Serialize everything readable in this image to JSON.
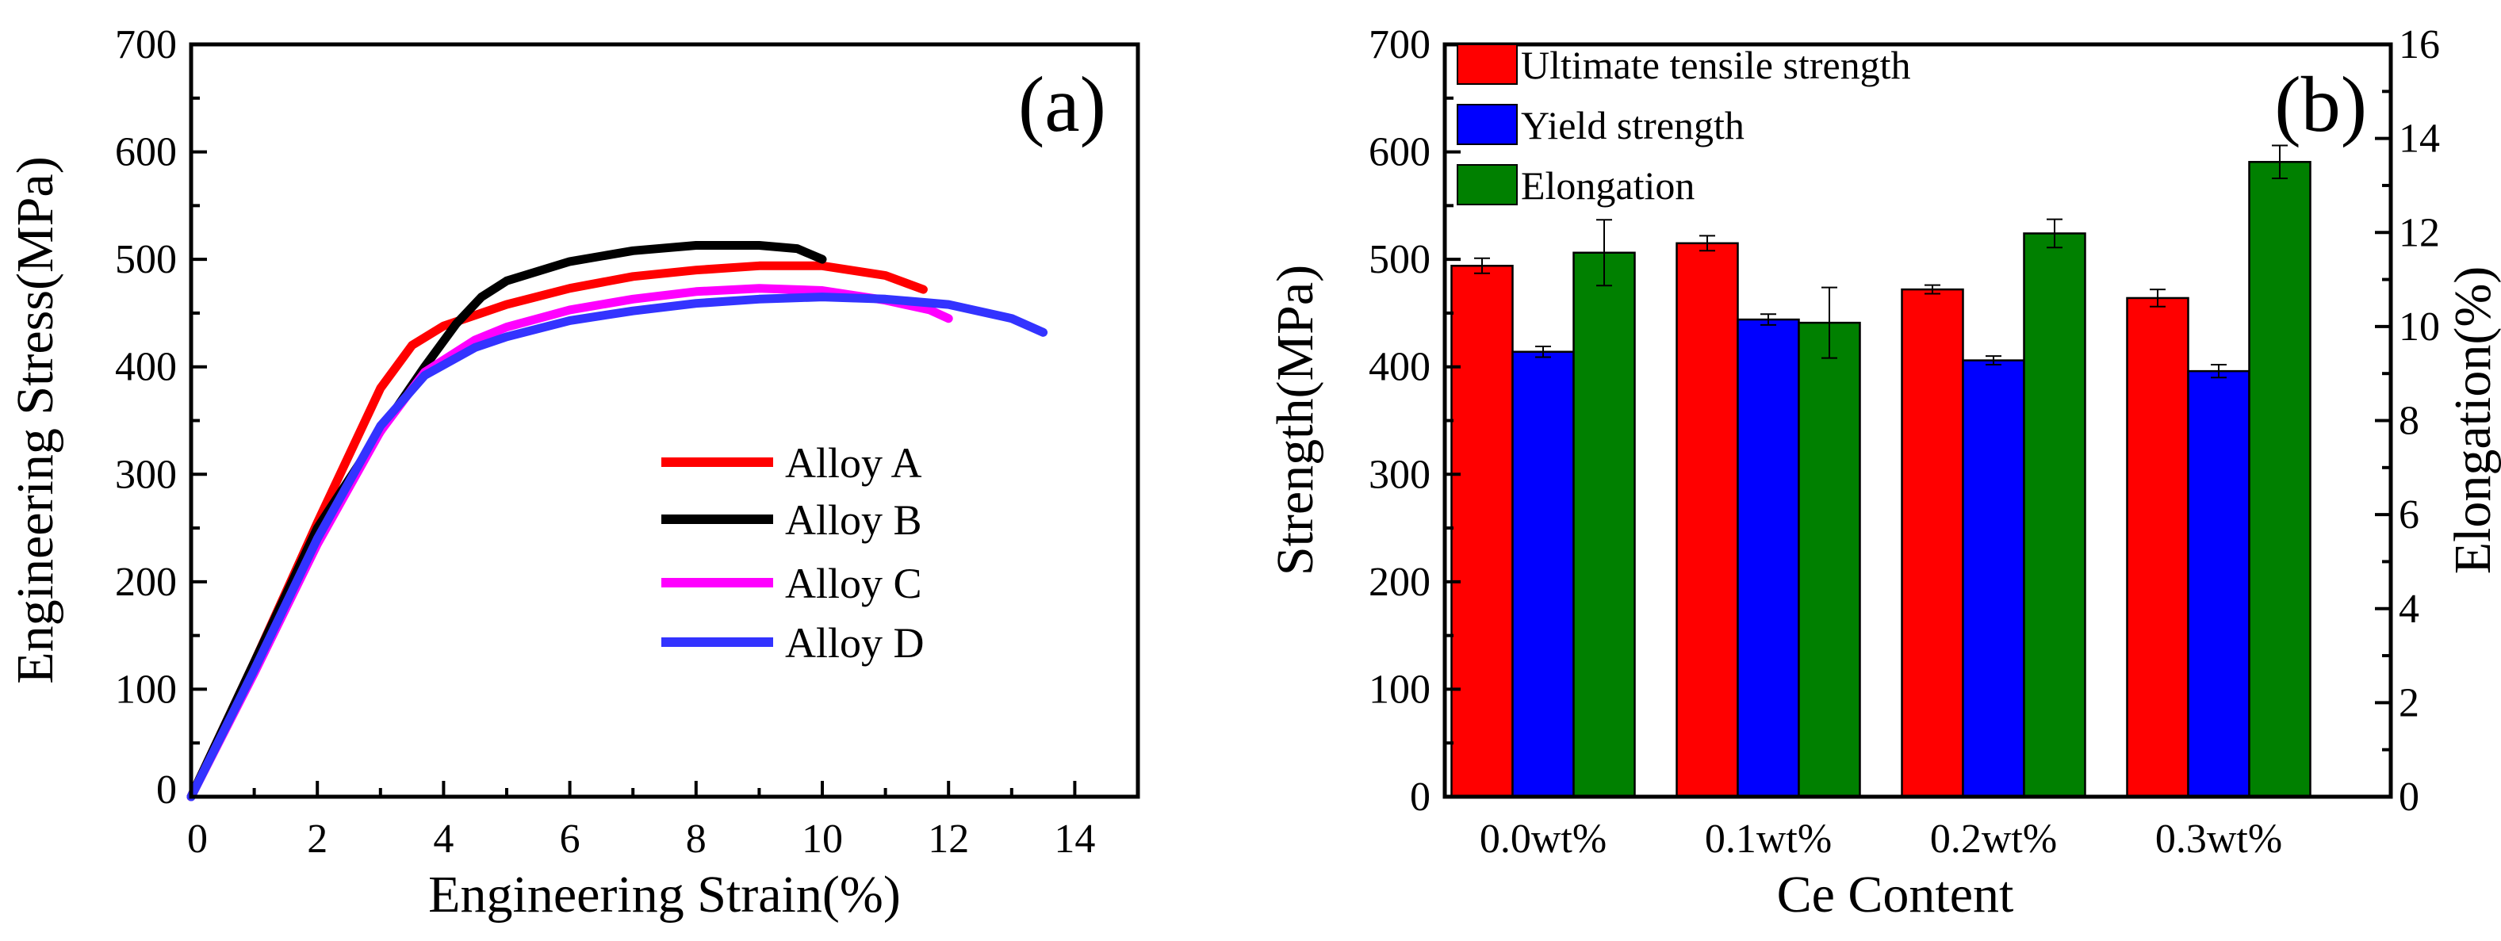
{
  "chart_data": [
    {
      "type": "line",
      "panel_label": "(a)",
      "xlabel": "Engineering Strain(%)",
      "ylabel": "Engineering Stress(MPa)",
      "xlim": [
        0,
        15
      ],
      "ylim": [
        0,
        700
      ],
      "xticks": [
        0,
        2,
        4,
        6,
        8,
        10,
        12,
        14
      ],
      "yticks": [
        0,
        100,
        200,
        300,
        400,
        500,
        600,
        700
      ],
      "legend_position": "center-right",
      "series": [
        {
          "name": "Alloy A",
          "color": "#ff0000",
          "points": [
            [
              0,
              0
            ],
            [
              1,
              125
            ],
            [
              2,
              255
            ],
            [
              3,
              380
            ],
            [
              3.5,
              420
            ],
            [
              4,
              438
            ],
            [
              5,
              458
            ],
            [
              6,
              473
            ],
            [
              7,
              484
            ],
            [
              8,
              490
            ],
            [
              9,
              494
            ],
            [
              10,
              494
            ],
            [
              11,
              485
            ],
            [
              11.6,
              472
            ]
          ]
        },
        {
          "name": "Alloy B",
          "color": "#000000",
          "points": [
            [
              0,
              0
            ],
            [
              1,
              125
            ],
            [
              2,
              250
            ],
            [
              3,
              340
            ],
            [
              3.7,
              400
            ],
            [
              4.2,
              440
            ],
            [
              4.6,
              465
            ],
            [
              5,
              480
            ],
            [
              6,
              498
            ],
            [
              7,
              508
            ],
            [
              8,
              513
            ],
            [
              9,
              513
            ],
            [
              9.6,
              510
            ],
            [
              10,
              500
            ]
          ]
        },
        {
          "name": "Alloy C",
          "color": "#ff00ff",
          "points": [
            [
              0,
              0
            ],
            [
              1,
              115
            ],
            [
              2,
              235
            ],
            [
              3,
              340
            ],
            [
              3.7,
              395
            ],
            [
              4.5,
              425
            ],
            [
              5,
              437
            ],
            [
              6,
              453
            ],
            [
              7,
              463
            ],
            [
              8,
              470
            ],
            [
              9,
              473
            ],
            [
              10,
              471
            ],
            [
              11,
              462
            ],
            [
              11.7,
              453
            ],
            [
              12,
              445
            ]
          ]
        },
        {
          "name": "Alloy D",
          "color": "#3333ff",
          "points": [
            [
              0,
              0
            ],
            [
              1,
              118
            ],
            [
              2,
              240
            ],
            [
              3,
              345
            ],
            [
              3.7,
              392
            ],
            [
              4.5,
              418
            ],
            [
              5,
              428
            ],
            [
              6,
              443
            ],
            [
              7,
              452
            ],
            [
              8,
              459
            ],
            [
              9,
              463
            ],
            [
              10,
              465
            ],
            [
              11,
              463
            ],
            [
              12,
              458
            ],
            [
              13,
              445
            ],
            [
              13.5,
              432
            ]
          ]
        }
      ]
    },
    {
      "type": "bar",
      "panel_label": "(b)",
      "xlabel": "Ce Content",
      "ylabel": "Strength(MPa)",
      "y2label": "Elongation(%)",
      "categories": [
        "0.0wt%",
        "0.1wt%",
        "0.2wt%",
        "0.3wt%"
      ],
      "ylim": [
        0,
        700
      ],
      "y2lim": [
        0,
        16
      ],
      "yticks": [
        0,
        100,
        200,
        300,
        400,
        500,
        600,
        700
      ],
      "y2ticks": [
        0,
        2,
        4,
        6,
        8,
        10,
        12,
        14,
        16
      ],
      "legend_position": "top-left",
      "series": [
        {
          "name": "Ultimate tensile strength",
          "color": "#ff0000",
          "axis": "left",
          "values": [
            494,
            515,
            472,
            464
          ],
          "errors": [
            7,
            7,
            4,
            8
          ]
        },
        {
          "name": "Yield strength",
          "color": "#0000ff",
          "axis": "left",
          "values": [
            414,
            444,
            406,
            396
          ],
          "errors": [
            5,
            5,
            4,
            6
          ]
        },
        {
          "name": "Elongation",
          "color": "#008000",
          "axis": "right",
          "values": [
            11.57,
            10.08,
            11.98,
            13.5
          ],
          "errors": [
            0.7,
            0.75,
            0.3,
            0.35
          ]
        }
      ]
    }
  ]
}
